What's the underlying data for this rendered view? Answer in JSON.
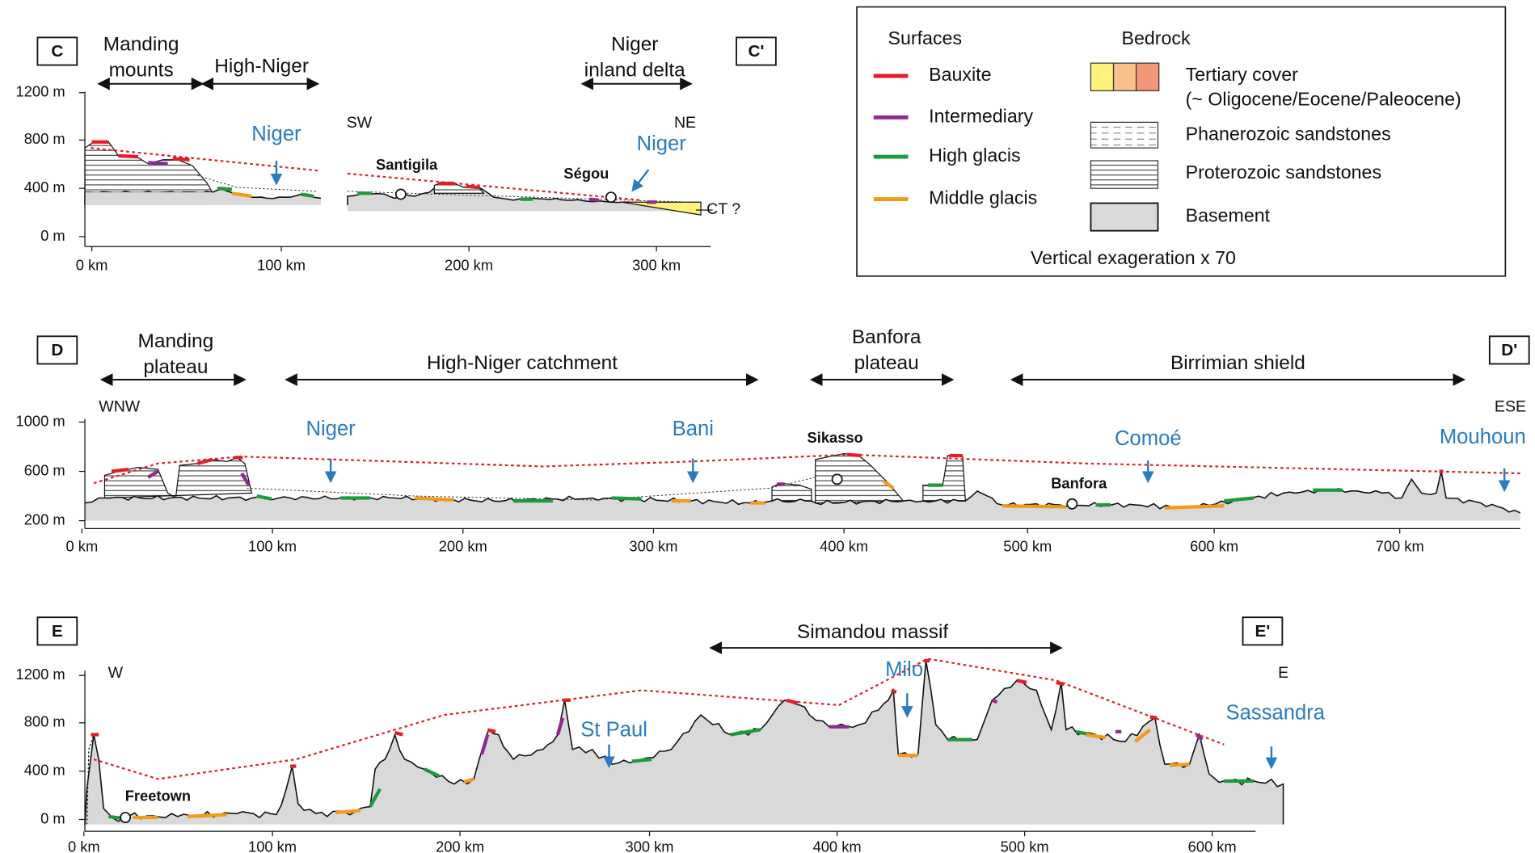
{
  "legend": {
    "surfaces_title": "Surfaces",
    "surfaces": [
      {
        "label": "Bauxite",
        "color": "#e31e2a"
      },
      {
        "label": "Intermediary",
        "color": "#8e2a8f"
      },
      {
        "label": "High glacis",
        "color": "#1d9a3c"
      },
      {
        "label": "Middle glacis",
        "color": "#f39a1d"
      }
    ],
    "bedrock_title": "Bedrock",
    "bedrock": [
      {
        "lines": [
          "Tertiary cover",
          "(~ Oligocene/Eocene/Paleocene)"
        ]
      },
      {
        "lines": [
          "Phanerozoic sandstones"
        ]
      },
      {
        "lines": [
          "Proterozoic sandstones"
        ]
      },
      {
        "lines": [
          "Basement"
        ]
      }
    ],
    "note": "Vertical exageration x 70"
  },
  "panels": [
    {
      "start": "C",
      "end": "C'",
      "regions": [
        [
          "Manding",
          "mounts"
        ],
        [
          "High-Niger"
        ],
        [
          "Niger",
          "inland delta"
        ]
      ],
      "y_ticks": [
        "1200 m",
        "800 m",
        "400 m",
        "0 m"
      ],
      "x_ticks": [
        "0 km",
        "100 km",
        "200 km",
        "300 km"
      ],
      "directions": [
        "SW",
        "NE"
      ],
      "rivers": [
        "Niger",
        "Niger"
      ],
      "places": [
        "Santigila",
        "Ségou"
      ],
      "note": "CT ?"
    },
    {
      "start": "D",
      "end": "D'",
      "regions": [
        [
          "Manding",
          "plateau"
        ],
        [
          "High-Niger catchment"
        ],
        [
          "Banfora",
          "plateau"
        ],
        [
          "Birrimian shield"
        ]
      ],
      "y_ticks": [
        "1000 m",
        "600 m",
        "200 m"
      ],
      "x_ticks": [
        "0 km",
        "100 km",
        "200 km",
        "300 km",
        "400 km",
        "500 km",
        "600 km",
        "700 km"
      ],
      "directions": [
        "WNW",
        "ESE"
      ],
      "rivers": [
        "Niger",
        "Bani",
        "Comoé",
        "Mouhoun"
      ],
      "places": [
        "Sikasso",
        "Banfora"
      ]
    },
    {
      "start": "E",
      "end": "E'",
      "regions": [
        [
          "Simandou massif"
        ]
      ],
      "y_ticks": [
        "1200 m",
        "800 m",
        "400 m",
        "0 m"
      ],
      "x_ticks": [
        "0 km",
        "100 km",
        "200 km",
        "300 km",
        "400 km",
        "500 km",
        "600 km"
      ],
      "directions": [
        "W",
        "E"
      ],
      "rivers": [
        "Milo",
        "St Paul",
        "Sassandra"
      ],
      "places": [
        "Freetown"
      ]
    }
  ]
}
